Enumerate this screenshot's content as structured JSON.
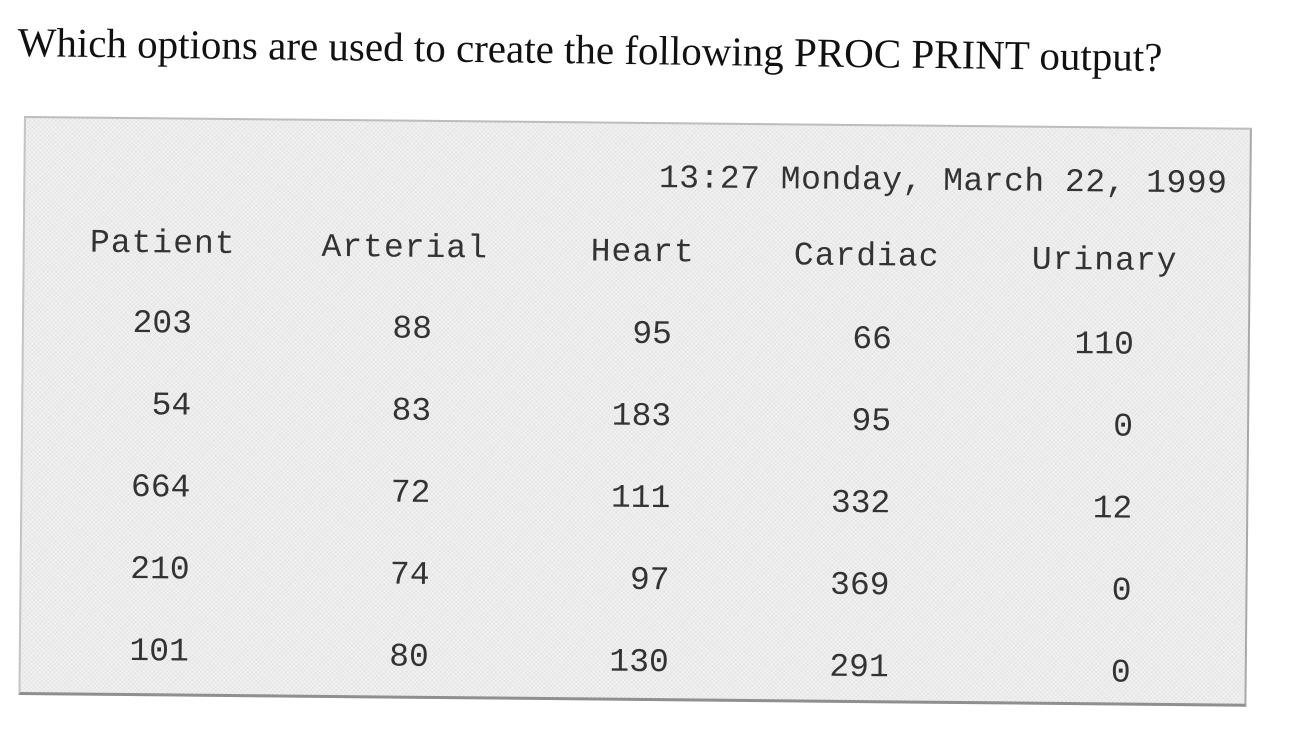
{
  "question": "Which options are used to create the following PROC PRINT output?",
  "output": {
    "timestamp": "13:27 Monday, March 22, 1999",
    "columns": [
      "Patient",
      "Arterial",
      "Heart",
      "Cardiac",
      "Urinary"
    ],
    "rows": [
      [
        "203",
        "88",
        "95",
        "66",
        "110"
      ],
      [
        "54",
        "83",
        "183",
        "95",
        "0"
      ],
      [
        "664",
        "72",
        "111",
        "332",
        "12"
      ],
      [
        "210",
        "74",
        "97",
        "369",
        "0"
      ],
      [
        "101",
        "80",
        "130",
        "291",
        "0"
      ]
    ]
  }
}
